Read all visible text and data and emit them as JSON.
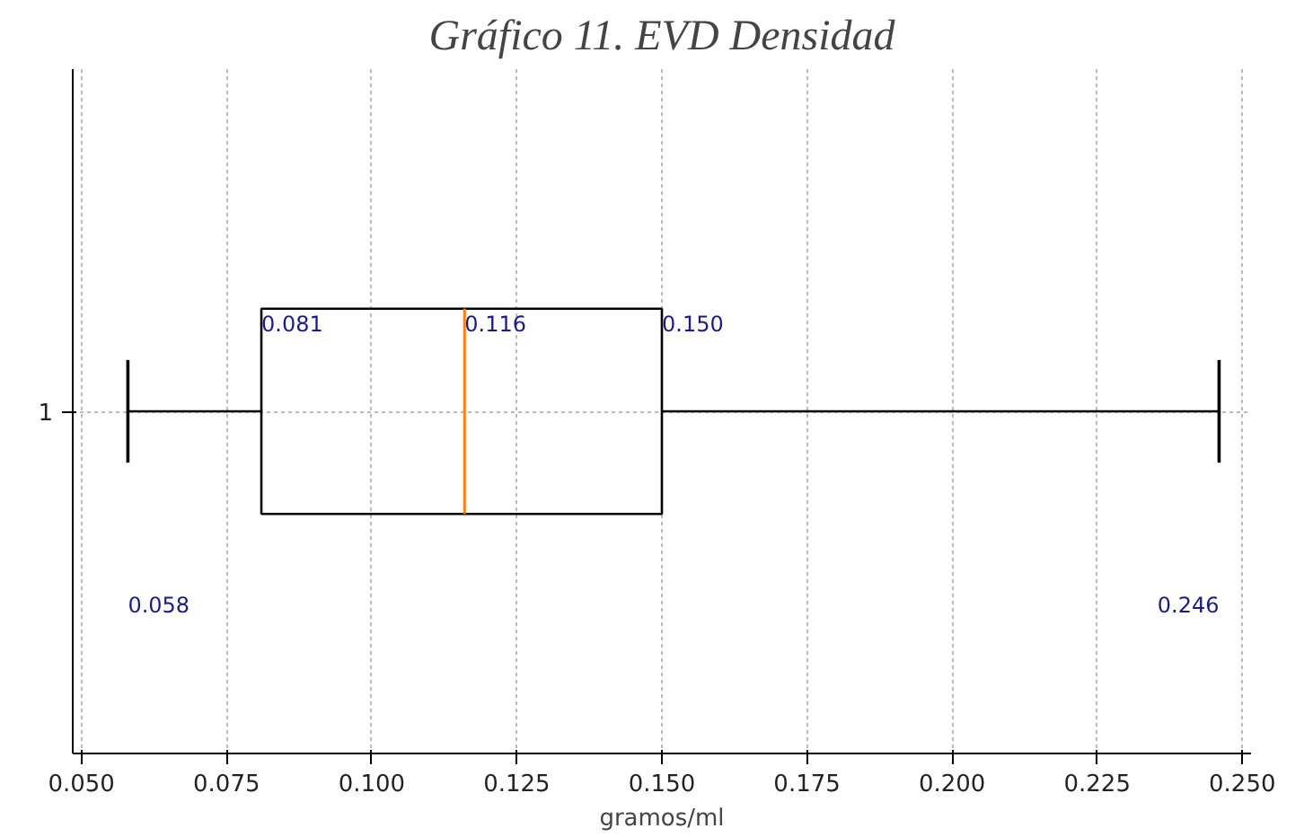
{
  "chart_data": {
    "type": "box",
    "title": "Gráfico 11. EVD Densidad",
    "xlabel": "gramos/ml",
    "orientation": "horizontal",
    "categories": [
      "1"
    ],
    "boxes": [
      {
        "low": 0.058,
        "q1": 0.081,
        "median": 0.116,
        "q3": 0.15,
        "high": 0.246
      }
    ],
    "color": "#000000",
    "xlim": [
      0.0485,
      0.2515
    ],
    "xticks": [
      {
        "value": 0.05,
        "label": "0.050"
      },
      {
        "value": 0.075,
        "label": "0.075"
      },
      {
        "value": 0.1,
        "label": "0.100"
      },
      {
        "value": 0.125,
        "label": "0.125"
      },
      {
        "value": 0.15,
        "label": "0.150"
      },
      {
        "value": 0.175,
        "label": "0.175"
      },
      {
        "value": 0.2,
        "label": "0.200"
      },
      {
        "value": 0.225,
        "label": "0.225"
      },
      {
        "value": 0.25,
        "label": "0.250"
      }
    ],
    "grid": true,
    "annotations": [
      {
        "text": "0.081",
        "x": 0.081
      },
      {
        "text": "0.116",
        "x": 0.116
      },
      {
        "text": "0.150",
        "x": 0.15
      },
      "0.058",
      "0.246"
    ]
  }
}
